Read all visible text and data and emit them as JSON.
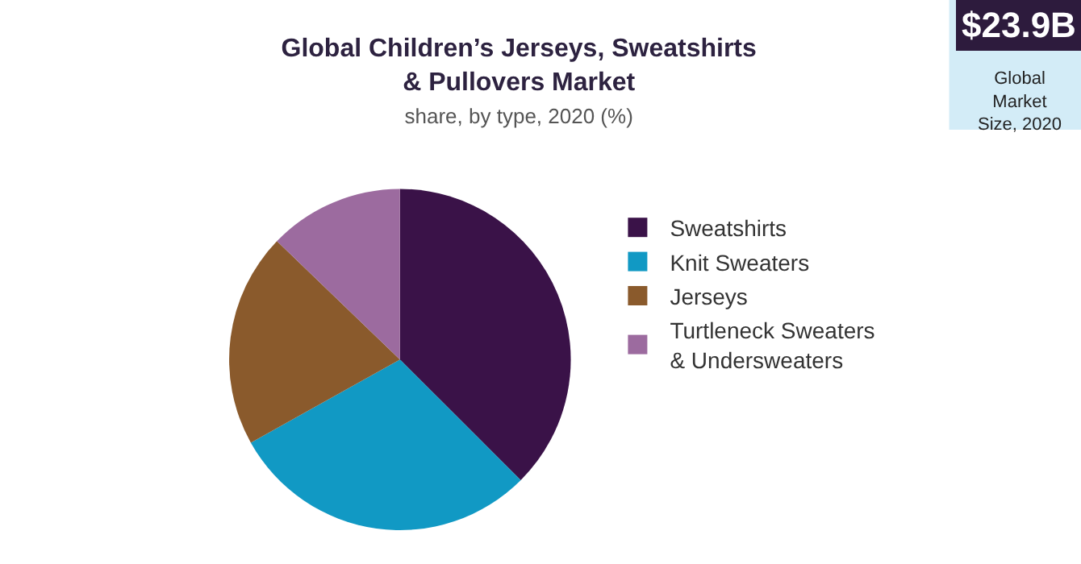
{
  "chart_data": {
    "type": "pie",
    "title": "Global Children’s Jerseys, Sweatshirts & Pullovers Market",
    "subtitle": "share, by type, 2020 (%)",
    "categories": [
      "Sweatshirts",
      "Knit Sweaters",
      "Jerseys",
      "Turtleneck Sweaters & Undersweaters"
    ],
    "values": [
      37.5,
      29.4,
      20.3,
      12.8
    ],
    "colors": [
      "#3a1248",
      "#1199c4",
      "#8a5a2c",
      "#9c6b9f"
    ],
    "legend": "right",
    "annotations": [
      "$23.9B",
      "Global Market Size, 2020"
    ]
  }
}
